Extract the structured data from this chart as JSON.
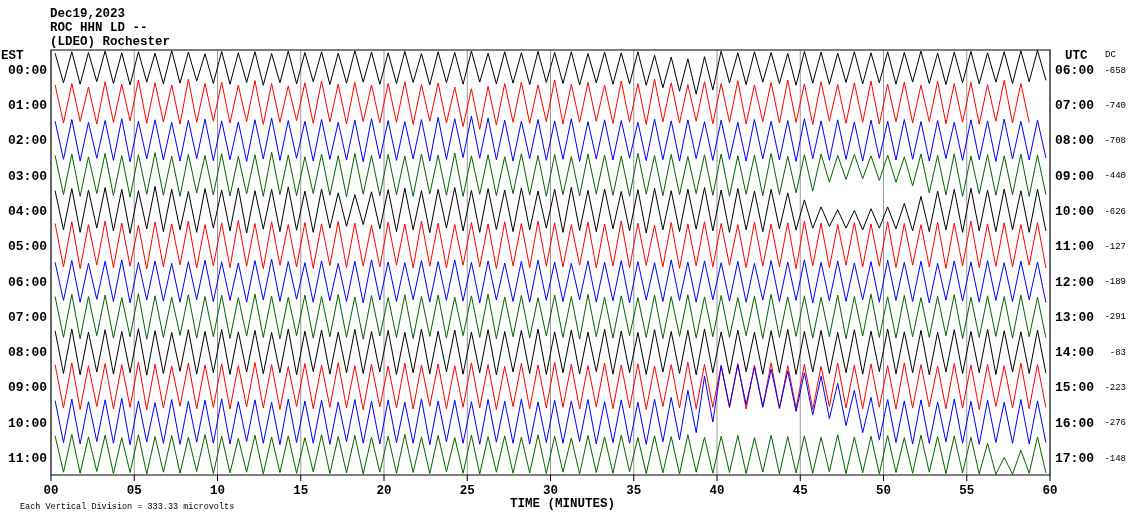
{
  "chart_data": {
    "type": "line",
    "title": "Dec19,2023",
    "subtitle": "ROC HHN LD --",
    "annotations": [
      "(LDEO) Rochester",
      "Each Vertical Division =  333.33 microvolts",
      "DC",
      "-658",
      "-740",
      "-708",
      "-440",
      "-626",
      "-127",
      "-189",
      "-291",
      "-83",
      "-223",
      "-276",
      "-148"
    ],
    "xlabel": "TIME (MINUTES)",
    "ylabel": "EST",
    "y2label": "UTC",
    "xlim": [
      0,
      60
    ],
    "xticks": [
      {
        "value": 0,
        "label": "00"
      },
      {
        "value": 5,
        "label": "05"
      },
      10,
      15,
      20,
      25,
      30,
      35,
      40,
      45,
      50,
      55,
      60
    ],
    "ylim": [
      11.5,
      -0.55
    ],
    "yticks": [
      {
        "value": 0,
        "label": "00:00"
      },
      {
        "value": 1,
        "label": "01:00"
      },
      {
        "value": 2,
        "label": "02:00"
      },
      {
        "value": 3,
        "label": "03:00"
      },
      {
        "value": 4,
        "label": "04:00"
      },
      {
        "value": 5,
        "label": "05:00"
      },
      {
        "value": 6,
        "label": "06:00"
      },
      {
        "value": 7,
        "label": "07:00"
      },
      {
        "value": 8,
        "label": "08:00"
      },
      {
        "value": 9,
        "label": "09:00"
      },
      {
        "value": 10,
        "label": "10:00"
      },
      {
        "value": 11,
        "label": "11:00"
      }
    ],
    "y2lim": [
      17.5,
      5.45
    ],
    "y2ticks": [
      {
        "value": 6,
        "label": "06:00"
      },
      {
        "value": 7,
        "label": "07:00"
      },
      {
        "value": 8,
        "label": "08:00"
      },
      {
        "value": 9,
        "label": "09:00"
      },
      {
        "value": 10,
        "label": "10:00"
      },
      {
        "value": 11,
        "label": "11:00"
      },
      {
        "value": 12,
        "label": "12:00"
      },
      {
        "value": 13,
        "label": "13:00"
      },
      {
        "value": 14,
        "label": "14:00"
      },
      {
        "value": 15,
        "label": "15:00"
      },
      {
        "value": 16,
        "label": "16:00"
      },
      {
        "value": 17,
        "label": "17:00"
      }
    ],
    "grid": "x",
    "x": [
      0.25,
      0.75,
      1.25,
      1.75,
      2.25,
      2.75,
      3.25,
      3.75,
      4.25,
      4.75,
      5.25,
      5.75,
      6.25,
      6.75,
      7.25,
      7.75,
      8.25,
      8.75,
      9.25,
      9.75,
      10.25,
      10.75,
      11.25,
      11.75,
      12.25,
      12.75,
      13.25,
      13.75,
      14.25,
      14.75,
      15.25,
      15.75,
      16.25,
      16.75,
      17.25,
      17.75,
      18.25,
      18.75,
      19.25,
      19.75,
      20.25,
      20.75,
      21.25,
      21.75,
      22.25,
      22.75,
      23.25,
      23.75,
      24.25,
      24.75,
      25.25,
      25.75,
      26.25,
      26.75,
      27.25,
      27.75,
      28.25,
      28.75,
      29.25,
      29.75,
      30.25,
      30.75,
      31.25,
      31.75,
      32.25,
      32.75,
      33.25,
      33.75,
      34.25,
      34.75,
      35.25,
      35.75,
      36.25,
      36.75,
      37.25,
      37.75,
      38.25,
      38.75,
      39.25,
      39.75,
      40.25,
      40.75,
      41.25,
      41.75,
      42.25,
      42.75,
      43.25,
      43.75,
      44.25,
      44.75,
      45.25,
      45.75,
      46.25,
      46.75,
      47.25,
      47.75,
      48.25,
      48.75,
      49.25,
      49.75,
      50.25,
      50.75,
      51.25,
      51.75,
      52.25,
      52.75,
      53.25,
      53.75,
      54.25,
      54.75,
      55.25,
      55.75,
      56.25,
      56.75,
      57.25,
      57.75,
      58.25,
      58.75,
      59.25,
      59.75
    ],
    "series": [
      {
        "color": "#000000",
        "values": [
          -0.45,
          0.38,
          -0.5,
          0.42,
          -0.48,
          0.35,
          -0.52,
          0.4,
          -0.47,
          0.44,
          -0.5,
          0.36,
          -0.46,
          0.41,
          -0.53,
          0.39,
          -0.49,
          0.33,
          -0.44,
          0.4,
          -0.51,
          0.42,
          -0.47,
          0.37,
          -0.5,
          0.45,
          -0.45,
          0.38,
          -0.52,
          0.41,
          -0.48,
          0.35,
          -0.5,
          0.43,
          -0.46,
          0.39,
          -0.53,
          0.36,
          -0.49,
          0.42,
          -0.47,
          0.4,
          -0.51,
          0.37,
          -0.45,
          0.44,
          -0.5,
          0.38,
          -0.48,
          0.42,
          -0.52,
          0.36,
          -0.46,
          0.41,
          -0.5,
          0.39,
          -0.47,
          0.43,
          -0.51,
          0.37,
          -0.48,
          0.4,
          -0.5,
          0.44,
          -0.45,
          0.38,
          -0.49,
          0.42,
          -0.47,
          0.41,
          -0.5,
          0.45,
          -0.4,
          0.52,
          -0.35,
          0.62,
          -0.3,
          0.7,
          -0.36,
          0.58,
          -0.52,
          0.38,
          -0.47,
          0.43,
          -0.5,
          0.36,
          -0.48,
          0.4,
          -0.45,
          0.45,
          -0.51,
          0.39,
          -0.49,
          0.42,
          -0.46,
          0.37,
          -0.5,
          0.41,
          -0.47,
          0.38,
          -0.5,
          0.42,
          -0.48,
          0.36,
          -0.52,
          0.4,
          -0.46,
          0.43,
          -0.49,
          0.38,
          -0.51,
          0.41,
          -0.47,
          0.36,
          -0.5,
          0.4,
          -0.53,
          0.35,
          -0.54,
          0.3
        ]
      },
      {
        "color": "#ff0000",
        "values": [
          0.45,
          1.52,
          0.4,
          1.48,
          0.5,
          1.55,
          0.35,
          1.5,
          0.42,
          1.46,
          0.3,
          1.53,
          0.38,
          1.49,
          0.44,
          1.55,
          0.28,
          1.5,
          0.4,
          1.47,
          0.36,
          1.52,
          0.45,
          1.48,
          0.32,
          1.56,
          0.4,
          1.5,
          0.47,
          1.45,
          0.38,
          1.53,
          0.33,
          1.49,
          0.42,
          1.55,
          0.37,
          1.48,
          0.44,
          1.51,
          0.4,
          1.5,
          0.35,
          1.56,
          0.43,
          1.47,
          0.38,
          1.52,
          0.5,
          1.62,
          0.55,
          1.7,
          0.48,
          1.58,
          0.4,
          1.5,
          0.36,
          1.53,
          0.44,
          1.48,
          0.3,
          1.55,
          0.42,
          1.5,
          0.37,
          1.47,
          0.45,
          1.53,
          0.33,
          1.5,
          0.4,
          1.56,
          0.28,
          1.49,
          0.38,
          1.52,
          0.43,
          1.47,
          0.35,
          1.54,
          0.4,
          1.5,
          0.32,
          1.55,
          0.44,
          1.48,
          0.37,
          1.52,
          0.3,
          1.5,
          0.41,
          1.56,
          0.35,
          1.47,
          0.43,
          1.53,
          0.38,
          1.5,
          0.33,
          1.55,
          0.42,
          1.49,
          0.36,
          1.52,
          0.45,
          1.48,
          0.34,
          1.54,
          0.4,
          1.5,
          0.37,
          1.55,
          0.43,
          1.47,
          0.31,
          1.52,
          0.4,
          1.5,
          null,
          null
        ]
      },
      {
        "color": "#0000ff",
        "values": [
          1.48,
          2.55,
          1.42,
          2.6,
          1.5,
          2.52,
          1.45,
          2.58,
          1.4,
          2.62,
          1.47,
          2.54,
          1.43,
          2.57,
          1.5,
          2.6,
          1.44,
          2.53,
          1.41,
          2.59,
          1.46,
          2.56,
          1.49,
          2.61,
          1.43,
          2.54,
          1.38,
          2.58,
          1.45,
          2.52,
          1.47,
          2.6,
          1.42,
          2.55,
          1.5,
          2.57,
          1.44,
          2.62,
          1.4,
          2.53,
          1.45,
          2.58,
          1.48,
          2.54,
          1.42,
          2.6,
          1.36,
          2.55,
          1.4,
          2.5,
          1.33,
          2.52,
          1.38,
          2.56,
          1.44,
          2.6,
          1.47,
          2.53,
          1.42,
          2.58,
          1.46,
          2.55,
          1.4,
          2.61,
          1.48,
          2.54,
          1.43,
          2.57,
          1.45,
          2.52,
          1.5,
          2.59,
          1.41,
          2.56,
          1.46,
          2.6,
          1.43,
          2.53,
          1.48,
          2.58,
          1.44,
          2.55,
          1.5,
          2.6,
          1.42,
          2.54,
          1.47,
          2.57,
          1.45,
          2.61,
          1.4,
          2.53,
          1.46,
          2.58,
          1.43,
          2.55,
          1.49,
          2.6,
          1.44,
          2.52,
          1.47,
          2.57,
          1.42,
          2.55,
          1.48,
          2.6,
          1.45,
          2.53,
          1.5,
          2.58,
          1.43,
          2.56,
          1.46,
          2.61,
          1.41,
          2.54,
          1.47,
          2.57,
          1.44,
          2.5
        ]
      },
      {
        "color": "#006600",
        "values": [
          2.45,
          3.55,
          2.4,
          3.6,
          2.48,
          3.52,
          2.38,
          3.58,
          2.44,
          3.62,
          2.42,
          3.54,
          2.36,
          3.57,
          2.46,
          3.6,
          2.41,
          3.5,
          2.44,
          3.56,
          2.39,
          3.59,
          2.47,
          3.53,
          2.42,
          3.6,
          2.35,
          3.55,
          2.43,
          3.58,
          2.48,
          3.52,
          2.4,
          3.57,
          2.45,
          3.61,
          2.38,
          3.54,
          2.44,
          3.58,
          2.41,
          3.55,
          2.46,
          3.6,
          2.4,
          3.53,
          2.43,
          3.57,
          2.37,
          3.6,
          2.45,
          3.54,
          2.42,
          3.58,
          2.48,
          3.52,
          2.39,
          3.56,
          2.44,
          3.6,
          2.41,
          3.55,
          2.47,
          3.59,
          2.4,
          3.53,
          2.43,
          3.57,
          2.46,
          3.6,
          2.38,
          3.54,
          2.44,
          3.58,
          2.41,
          3.55,
          2.47,
          3.52,
          2.42,
          3.57,
          2.4,
          3.6,
          2.45,
          3.54,
          2.43,
          3.58,
          2.38,
          3.55,
          2.46,
          3.5,
          2.42,
          3.45,
          2.4,
          3.2,
          2.44,
          3.12,
          2.41,
          3.1,
          2.45,
          3.15,
          2.43,
          3.2,
          2.48,
          3.3,
          2.4,
          3.5,
          2.44,
          3.56,
          2.39,
          3.6,
          2.46,
          3.53,
          2.42,
          3.57,
          2.45,
          3.55,
          2.4,
          3.6,
          2.43,
          3.54
        ]
      },
      {
        "color": "#000000",
        "values": [
          3.45,
          4.55,
          3.38,
          4.62,
          3.42,
          4.5,
          3.35,
          4.58,
          3.4,
          4.65,
          3.44,
          4.52,
          3.32,
          4.6,
          3.4,
          4.55,
          3.46,
          4.62,
          3.38,
          4.5,
          3.42,
          4.58,
          3.36,
          4.64,
          3.44,
          4.53,
          3.4,
          4.6,
          3.33,
          4.56,
          3.45,
          4.62,
          3.39,
          4.5,
          3.5,
          4.45,
          3.55,
          4.4,
          3.47,
          4.52,
          3.41,
          4.6,
          3.37,
          4.55,
          3.44,
          4.63,
          3.4,
          4.5,
          3.35,
          4.58,
          3.43,
          4.62,
          3.38,
          4.54,
          3.42,
          4.6,
          3.36,
          4.55,
          3.45,
          4.5,
          3.4,
          4.62,
          3.34,
          4.57,
          3.43,
          4.6,
          3.39,
          4.52,
          3.46,
          4.58,
          3.41,
          4.64,
          3.37,
          4.55,
          3.44,
          4.6,
          3.4,
          4.53,
          3.35,
          4.58,
          3.42,
          4.62,
          3.38,
          4.55,
          3.45,
          4.6,
          3.4,
          4.52,
          3.5,
          4.55,
          3.7,
          4.5,
          3.9,
          4.45,
          3.98,
          4.5,
          4.0,
          4.55,
          3.95,
          4.5,
          3.9,
          4.52,
          3.8,
          4.58,
          3.6,
          4.6,
          3.45,
          4.55,
          3.4,
          4.62,
          3.37,
          4.58,
          3.42,
          4.6,
          3.39,
          4.55,
          3.44,
          4.62,
          3.4,
          4.57
        ]
      },
      {
        "color": "#ff0000",
        "values": [
          4.38,
          5.6,
          4.32,
          5.65,
          4.4,
          5.55,
          4.3,
          5.62,
          4.36,
          5.58,
          4.42,
          5.66,
          4.33,
          5.6,
          4.38,
          5.54,
          4.3,
          5.63,
          4.4,
          5.57,
          4.35,
          5.62,
          4.28,
          5.58,
          4.37,
          5.65,
          4.32,
          5.55,
          4.4,
          5.6,
          4.34,
          5.64,
          4.38,
          5.56,
          4.31,
          5.62,
          4.36,
          5.58,
          4.42,
          5.6,
          4.33,
          5.55,
          4.38,
          5.63,
          4.3,
          5.58,
          4.36,
          5.62,
          4.4,
          5.55,
          4.34,
          5.6,
          4.38,
          5.65,
          4.32,
          5.57,
          4.37,
          5.62,
          4.3,
          5.58,
          4.35,
          5.6,
          4.4,
          5.55,
          4.33,
          5.63,
          4.38,
          5.58,
          4.3,
          5.62,
          4.36,
          5.56,
          4.42,
          5.6,
          4.34,
          5.64,
          4.38,
          5.57,
          4.32,
          5.6,
          4.37,
          5.55,
          4.4,
          5.62,
          4.33,
          5.58,
          4.38,
          5.6,
          4.35,
          5.65,
          4.3,
          5.57,
          4.36,
          5.62,
          4.4,
          5.55,
          4.34,
          5.6,
          4.38,
          5.58,
          4.32,
          5.62,
          4.37,
          5.55,
          4.4,
          5.6,
          4.33,
          5.64,
          4.36,
          5.57,
          4.3,
          5.62,
          4.38,
          5.58,
          4.35,
          5.6,
          4.4,
          5.55,
          4.34,
          5.62
        ]
      },
      {
        "color": "#0000ff",
        "values": [
          5.48,
          6.55,
          5.42,
          6.6,
          5.5,
          6.52,
          5.44,
          6.58,
          5.4,
          6.62,
          5.47,
          6.54,
          5.43,
          6.57,
          5.5,
          6.6,
          5.45,
          6.53,
          5.41,
          6.58,
          5.46,
          6.55,
          5.49,
          6.6,
          5.42,
          6.54,
          5.38,
          6.58,
          5.45,
          6.52,
          5.48,
          6.6,
          5.43,
          6.56,
          5.5,
          6.58,
          5.44,
          6.62,
          5.4,
          6.54,
          5.46,
          6.58,
          5.48,
          6.53,
          5.42,
          6.6,
          5.45,
          6.55,
          5.4,
          6.57,
          5.47,
          6.62,
          5.43,
          6.54,
          5.49,
          6.58,
          5.44,
          6.6,
          5.41,
          6.55,
          5.46,
          6.58,
          5.5,
          6.53,
          5.43,
          6.6,
          5.47,
          6.56,
          5.42,
          6.62,
          5.45,
          6.54,
          5.48,
          6.58,
          5.4,
          6.55,
          5.46,
          6.6,
          5.43,
          6.53,
          5.48,
          6.57,
          5.44,
          6.6,
          5.5,
          6.54,
          5.42,
          6.58,
          5.46,
          6.55,
          5.4,
          6.62,
          5.47,
          6.56,
          5.43,
          6.58,
          5.49,
          6.53,
          5.45,
          6.6,
          5.41,
          6.55,
          5.47,
          6.58,
          5.44,
          6.62,
          5.5,
          6.54,
          5.43,
          6.57,
          5.46,
          6.6,
          5.42,
          6.55,
          5.48,
          6.58,
          5.44,
          6.53,
          5.46,
          6.6
        ]
      },
      {
        "color": "#006600",
        "values": [
          6.45,
          7.6,
          6.38,
          7.64,
          6.44,
          7.55,
          6.4,
          7.62,
          6.47,
          7.58,
          6.36,
          7.65,
          6.42,
          7.6,
          6.46,
          7.54,
          6.39,
          7.62,
          6.44,
          7.58,
          6.4,
          7.63,
          6.47,
          7.56,
          6.37,
          7.6,
          6.43,
          7.64,
          6.46,
          7.55,
          6.4,
          7.62,
          6.44,
          7.58,
          6.38,
          7.6,
          6.45,
          7.65,
          6.41,
          7.56,
          6.47,
          7.6,
          6.39,
          7.63,
          6.44,
          7.57,
          6.4,
          7.62,
          6.46,
          7.55,
          6.42,
          7.6,
          6.37,
          7.64,
          6.45,
          7.58,
          6.41,
          7.62,
          6.47,
          7.56,
          6.4,
          7.6,
          6.44,
          7.65,
          6.38,
          7.58,
          6.46,
          7.62,
          6.42,
          7.55,
          6.47,
          7.6,
          6.4,
          7.63,
          6.44,
          7.57,
          6.39,
          7.62,
          6.45,
          7.58,
          6.41,
          7.6,
          6.47,
          7.55,
          6.43,
          7.63,
          6.38,
          7.6,
          6.45,
          7.57,
          6.42,
          7.62,
          6.46,
          7.58,
          6.4,
          7.64,
          6.44,
          7.56,
          6.37,
          7.6,
          6.45,
          7.62,
          6.41,
          7.58,
          6.47,
          7.6,
          6.43,
          7.55,
          6.39,
          7.63,
          6.46,
          7.6,
          6.42,
          7.57,
          6.44,
          7.62,
          6.4,
          7.58,
          6.46,
          7.6
        ]
      },
      {
        "color": "#000000",
        "values": [
          7.42,
          8.62,
          7.36,
          8.66,
          7.45,
          8.58,
          7.38,
          8.64,
          7.43,
          8.6,
          7.35,
          8.67,
          7.41,
          8.62,
          7.46,
          8.56,
          7.38,
          8.64,
          7.43,
          8.6,
          7.37,
          8.65,
          7.44,
          8.58,
          7.4,
          8.63,
          7.46,
          8.6,
          7.36,
          8.66,
          7.42,
          8.57,
          7.39,
          8.64,
          7.45,
          8.6,
          7.37,
          8.62,
          7.43,
          8.58,
          7.4,
          8.65,
          7.46,
          8.6,
          7.36,
          8.63,
          7.42,
          8.57,
          7.39,
          8.64,
          7.45,
          8.6,
          7.38,
          8.66,
          7.43,
          8.58,
          7.4,
          8.62,
          7.36,
          8.65,
          7.44,
          8.6,
          7.39,
          8.63,
          7.45,
          8.57,
          7.37,
          8.64,
          7.42,
          8.6,
          7.46,
          8.65,
          7.38,
          8.58,
          7.43,
          8.62,
          7.4,
          8.66,
          7.36,
          8.6,
          7.44,
          8.63,
          7.39,
          8.57,
          7.45,
          8.64,
          7.41,
          8.6,
          7.37,
          8.65,
          7.43,
          8.58,
          7.4,
          8.62,
          7.46,
          8.6,
          7.38,
          8.64,
          7.42,
          8.57,
          7.36,
          8.63,
          7.44,
          8.6,
          7.4,
          8.66,
          7.45,
          8.58,
          7.38,
          8.62,
          7.43,
          8.6,
          7.37,
          8.65,
          7.41,
          8.58,
          7.44,
          8.62,
          7.39,
          8.6
        ]
      },
      {
        "color": "#ff0000",
        "values": [
          8.38,
          9.6,
          8.32,
          9.64,
          8.4,
          9.56,
          8.34,
          9.62,
          8.37,
          9.58,
          8.3,
          9.65,
          8.36,
          9.6,
          8.41,
          9.55,
          8.33,
          9.62,
          8.38,
          9.58,
          8.35,
          9.63,
          8.4,
          9.57,
          8.31,
          9.6,
          8.37,
          9.64,
          8.42,
          9.56,
          8.34,
          9.62,
          8.38,
          9.58,
          8.32,
          9.6,
          8.4,
          9.65,
          8.36,
          9.57,
          8.41,
          9.6,
          8.33,
          9.63,
          8.38,
          9.55,
          8.35,
          9.62,
          8.4,
          9.58,
          8.32,
          9.6,
          8.37,
          9.64,
          8.42,
          9.56,
          8.34,
          9.62,
          8.38,
          9.6,
          8.31,
          9.58,
          8.36,
          9.63,
          8.4,
          9.57,
          8.33,
          9.62,
          8.38,
          9.6,
          8.35,
          9.64,
          8.41,
          9.56,
          8.37,
          9.6,
          8.3,
          9.62,
          8.36,
          9.58,
          8.4,
          9.6,
          8.34,
          9.63,
          8.38,
          9.57,
          8.32,
          9.62,
          8.4,
          9.6,
          8.36,
          9.64,
          8.42,
          9.56,
          8.33,
          9.6,
          8.38,
          9.62,
          8.35,
          9.58,
          8.4,
          9.63,
          8.32,
          9.6,
          8.37,
          9.57,
          8.41,
          9.62,
          8.34,
          9.6,
          8.38,
          9.64,
          8.36,
          9.56,
          8.4,
          9.6,
          8.33,
          9.62,
          8.37,
          9.58
        ]
      },
      {
        "color": "#0000ff",
        "values": [
          9.4,
          10.58,
          9.35,
          10.62,
          9.42,
          10.55,
          9.37,
          10.6,
          9.33,
          10.64,
          9.4,
          10.56,
          9.45,
          10.6,
          9.36,
          10.63,
          9.41,
          10.57,
          9.38,
          10.6,
          9.34,
          10.62,
          9.42,
          10.55,
          9.37,
          10.6,
          9.44,
          10.64,
          9.35,
          10.58,
          9.4,
          10.6,
          9.38,
          10.63,
          9.43,
          10.56,
          9.36,
          10.6,
          9.41,
          10.62,
          9.37,
          10.58,
          9.44,
          10.6,
          9.34,
          10.64,
          9.4,
          10.56,
          9.38,
          10.6,
          9.42,
          10.63,
          9.36,
          10.57,
          9.41,
          10.6,
          9.35,
          10.62,
          9.43,
          10.58,
          9.38,
          10.6,
          9.4,
          10.55,
          9.36,
          10.62,
          9.42,
          10.58,
          9.37,
          10.6,
          9.44,
          10.63,
          9.35,
          10.56,
          9.3,
          10.5,
          9.1,
          10.3,
          8.7,
          10.0,
          8.4,
          9.55,
          8.38,
          9.5,
          8.45,
          9.58,
          8.5,
          9.6,
          8.55,
          9.7,
          8.6,
          9.8,
          8.7,
          9.9,
          8.9,
          10.1,
          9.1,
          10.3,
          9.3,
          10.5,
          9.36,
          10.58,
          9.4,
          10.62,
          9.37,
          10.6,
          9.43,
          10.56,
          9.35,
          10.6,
          9.41,
          10.63,
          9.38,
          10.58,
          9.44,
          10.6,
          9.36,
          10.62,
          9.4,
          10.57
        ]
      },
      {
        "color": "#006600",
        "values": [
          10.4,
          11.42,
          10.35,
          11.45,
          10.42,
          11.4,
          10.37,
          11.46,
          10.44,
          11.43,
          10.36,
          11.47,
          10.41,
          11.42,
          10.38,
          11.45,
          10.43,
          11.4,
          10.35,
          11.46,
          10.4,
          11.44,
          10.46,
          11.42,
          10.37,
          11.47,
          10.42,
          11.43,
          10.39,
          11.45,
          10.44,
          11.41,
          10.36,
          11.46,
          10.41,
          11.44,
          10.38,
          11.47,
          10.43,
          11.42,
          10.4,
          11.45,
          10.35,
          11.43,
          10.42,
          11.46,
          10.38,
          11.41,
          10.44,
          11.45,
          10.37,
          11.47,
          10.41,
          11.42,
          10.39,
          11.45,
          10.43,
          11.44,
          10.36,
          11.46,
          10.4,
          11.42,
          10.45,
          11.47,
          10.38,
          11.43,
          10.42,
          11.45,
          10.37,
          11.41,
          10.44,
          11.46,
          10.39,
          11.44,
          10.41,
          11.47,
          10.36,
          11.42,
          10.43,
          11.45,
          10.4,
          11.43,
          10.38,
          11.46,
          10.44,
          11.42,
          10.37,
          11.47,
          10.41,
          11.44,
          10.39,
          11.45,
          10.43,
          11.41,
          10.36,
          11.46,
          10.42,
          11.44,
          10.4,
          11.47,
          10.38,
          11.43,
          10.44,
          11.45,
          10.37,
          11.42,
          10.41,
          11.46,
          10.39,
          11.44,
          10.43,
          11.47,
          10.6,
          11.48,
          11.0,
          11.48,
          10.8,
          11.45,
          10.42,
          11.43
        ]
      }
    ]
  }
}
